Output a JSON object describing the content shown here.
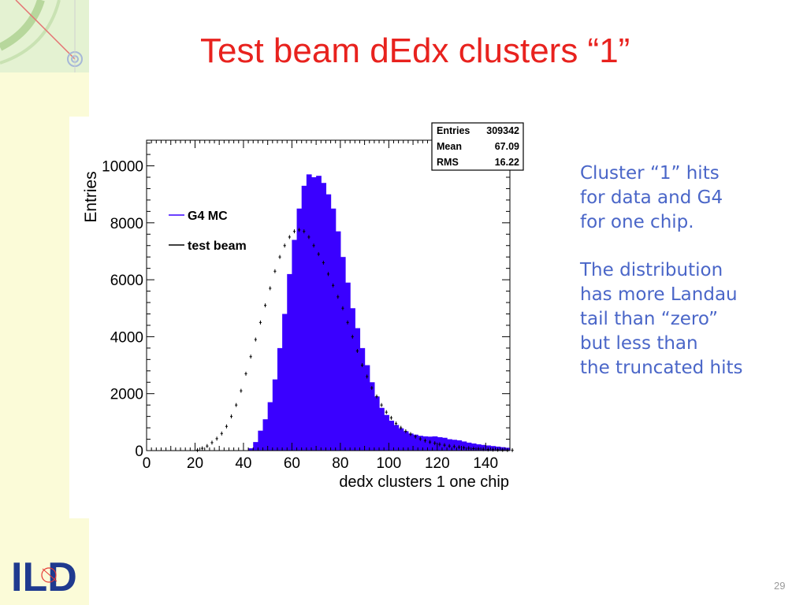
{
  "slide": {
    "title": "Test beam dEdx clusters “1”",
    "page_number": "29",
    "logo_text": "ILD",
    "text_color": "#4a66c8",
    "title_color": "#e8221e",
    "side_text": {
      "paragraph1": [
        "Cluster “1” hits",
        "for data and G4",
        "for one chip."
      ],
      "paragraph2": [
        "The distribution",
        "has more Landau",
        "tail than “zero”",
        "but less than",
        "the truncated hits"
      ]
    }
  },
  "chart_data": {
    "type": "bar",
    "xlabel": "dedx clusters 1 one chip",
    "ylabel": "Entries",
    "xlim": [
      0,
      150
    ],
    "ylim": [
      0,
      10900
    ],
    "xticks": [
      0,
      20,
      40,
      60,
      80,
      100,
      120,
      140
    ],
    "yticks": [
      0,
      2000,
      4000,
      6000,
      8000,
      10000
    ],
    "stats": [
      {
        "label": "Entries",
        "value": "309342"
      },
      {
        "label": "Mean",
        "value": "67.09"
      },
      {
        "label": "RMS",
        "value": "16.22"
      }
    ],
    "legend": [
      {
        "name": "G4 MC",
        "color": "#3a00ff",
        "style": "filled"
      },
      {
        "name": "test beam",
        "color": "#000000",
        "style": "points"
      }
    ],
    "series": [
      {
        "name": "G4 MC",
        "color": "#3a00ff",
        "x": [
          40,
          42,
          44,
          46,
          48,
          50,
          52,
          54,
          56,
          58,
          60,
          62,
          64,
          66,
          68,
          70,
          72,
          74,
          76,
          78,
          80,
          82,
          84,
          86,
          88,
          90,
          92,
          94,
          96,
          98,
          100,
          102,
          104,
          106,
          108,
          110,
          112,
          114,
          116,
          118,
          120,
          122,
          124,
          126,
          128,
          130,
          132,
          134,
          136,
          138,
          140,
          142,
          144,
          146,
          148,
          150
        ],
        "y": [
          10,
          80,
          300,
          700,
          1100,
          1700,
          2500,
          3600,
          4800,
          6200,
          7400,
          8500,
          9300,
          9700,
          9600,
          9650,
          9400,
          9000,
          8500,
          7700,
          6800,
          5900,
          5000,
          4300,
          3600,
          3000,
          2400,
          1900,
          1500,
          1250,
          1050,
          900,
          780,
          680,
          600,
          560,
          520,
          500,
          490,
          500,
          470,
          450,
          400,
          380,
          360,
          320,
          280,
          250,
          220,
          200,
          180,
          160,
          140,
          120,
          100,
          80
        ]
      },
      {
        "name": "test beam",
        "color": "#000000",
        "x": [
          20,
          22,
          24,
          26,
          28,
          30,
          32,
          34,
          36,
          38,
          40,
          42,
          44,
          46,
          48,
          50,
          52,
          54,
          56,
          58,
          60,
          62,
          64,
          66,
          68,
          70,
          72,
          74,
          76,
          78,
          80,
          82,
          84,
          86,
          88,
          90,
          92,
          94,
          96,
          98,
          100,
          102,
          104,
          106,
          108,
          110,
          112,
          114,
          116,
          118,
          120,
          122,
          124,
          126,
          128,
          130,
          132,
          134,
          136,
          138,
          140,
          142,
          144,
          146,
          148,
          150
        ],
        "y": [
          20,
          80,
          160,
          280,
          420,
          600,
          850,
          1200,
          1600,
          2100,
          2700,
          3300,
          3900,
          4500,
          5100,
          5700,
          6300,
          6800,
          7200,
          7500,
          7700,
          7750,
          7700,
          7500,
          7200,
          6900,
          6600,
          6200,
          5800,
          5400,
          5000,
          4500,
          4000,
          3500,
          3000,
          2600,
          2200,
          1900,
          1600,
          1350,
          1150,
          950,
          800,
          680,
          580,
          490,
          410,
          350,
          300,
          260,
          220,
          190,
          160,
          140,
          120,
          100,
          85,
          70,
          60,
          50,
          40,
          35,
          30,
          25,
          20,
          15
        ]
      }
    ]
  }
}
